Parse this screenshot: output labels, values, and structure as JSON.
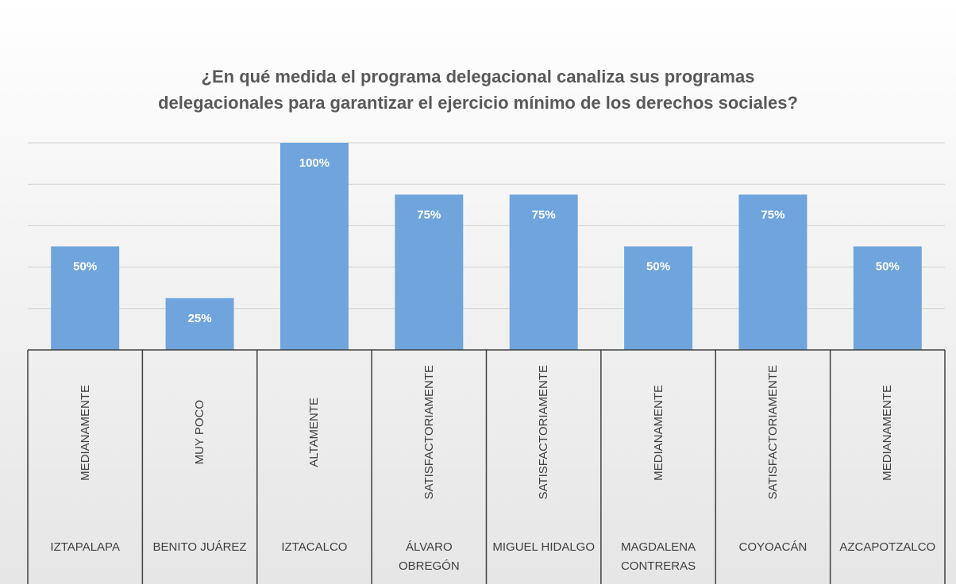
{
  "chart_data": {
    "type": "bar",
    "title": [
      "¿En qué medida el programa delegacional canaliza sus programas",
      "delegacionales para garantizar el ejercicio mínimo de los derechos sociales?"
    ],
    "categories": [
      "MEDIANAMENTE",
      "MUY POCO",
      "ALTAMENTE",
      "SATISFACTORIAMENTE",
      "SATISFACTORIAMENTE",
      "MEDIANAMENTE",
      "SATISFACTORIAMENTE",
      "MEDIANAMENTE"
    ],
    "category_groups": [
      "IZTAPALAPA",
      "BENITO JUÁREZ",
      "IZTACALCO",
      "ÁLVARO OBREGÓN",
      "MIGUEL HIDALGO",
      "MAGDALENA CONTRERAS",
      "COYOACÁN",
      "AZCAPOTZALCO"
    ],
    "values": [
      50,
      25,
      100,
      75,
      75,
      50,
      75,
      50
    ],
    "value_labels": [
      "50%",
      "25%",
      "100%",
      "75%",
      "75%",
      "50%",
      "75%",
      "50%"
    ],
    "color": "#6fa5dc",
    "ylim": [
      0,
      100
    ],
    "yticks": [
      0,
      20,
      40,
      60,
      80,
      100
    ],
    "grid": true
  }
}
